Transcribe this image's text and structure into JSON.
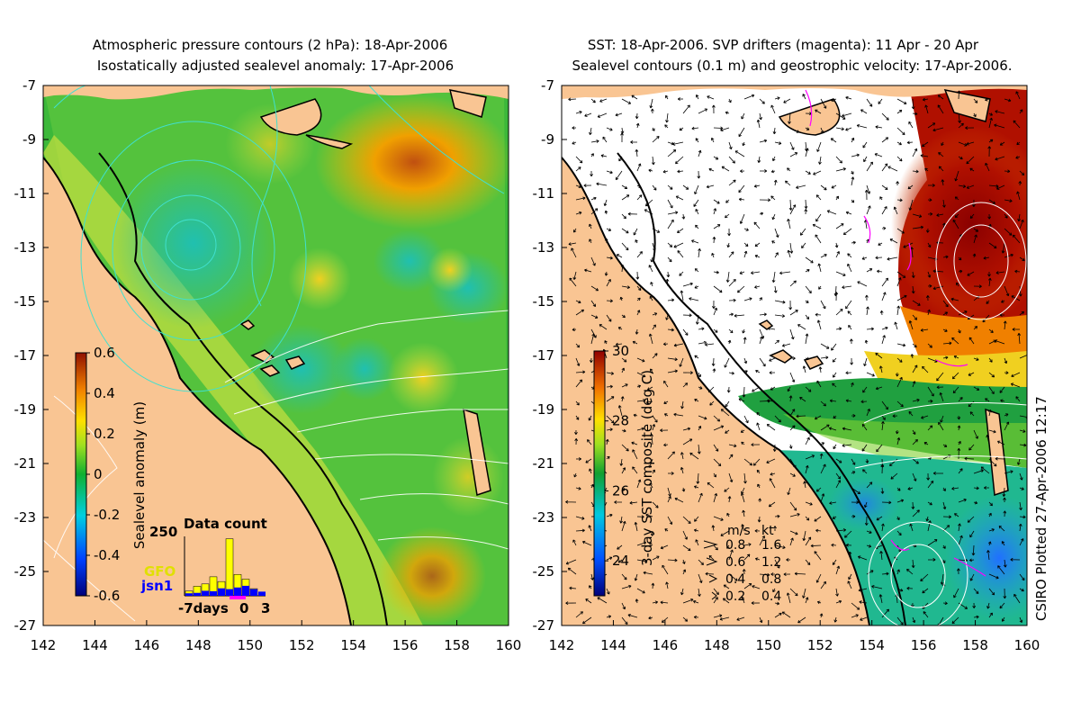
{
  "left_panel": {
    "title_line1": "Atmospheric pressure contours (2 hPa): 18-Apr-2006",
    "title_line2": "Isostatically adjusted sealevel anomaly: 17-Apr-2006",
    "x_ticks": [
      "142",
      "144",
      "146",
      "148",
      "150",
      "152",
      "154",
      "156",
      "158",
      "160"
    ],
    "y_ticks": [
      "-7",
      "-9",
      "-11",
      "-13",
      "-15",
      "-17",
      "-19",
      "-21",
      "-23",
      "-25",
      "-27"
    ],
    "colorbar": {
      "label": "Sealevel anomaly (m)",
      "ticks": [
        "0.6",
        "0.4",
        "0.2",
        "0",
        "-0.2",
        "-0.4",
        "-0.6"
      ],
      "range": [
        -0.6,
        0.6
      ]
    },
    "inset": {
      "title": "Data count",
      "ymax_label": "250",
      "series_gfo": "GFO",
      "series_jsn1": "jsn1",
      "x_label_days": "-7days",
      "x_label_zero": "0",
      "x_label_three": "3",
      "gfo_color": "#ffff00",
      "jsn1_color": "#0000ff",
      "gfo_counts": [
        20,
        40,
        50,
        80,
        60,
        240,
        90,
        70,
        30
      ],
      "jsn1_counts": [
        30,
        35,
        60,
        55,
        90,
        80,
        100,
        120,
        80,
        50
      ]
    }
  },
  "right_panel": {
    "title_line1": "SST: 18-Apr-2006. SVP drifters (magenta): 11 Apr - 20 Apr",
    "title_line2": "Sealevel contours (0.1 m) and geostrophic velocity: 17-Apr-2006.",
    "x_ticks": [
      "142",
      "144",
      "146",
      "148",
      "150",
      "152",
      "154",
      "156",
      "158",
      "160"
    ],
    "y_ticks": [
      "-7",
      "-9",
      "-11",
      "-13",
      "-15",
      "-17",
      "-19",
      "-21",
      "-23",
      "-25",
      "-27"
    ],
    "colorbar": {
      "label": "3-day SST composite (deg C)",
      "ticks": [
        "30",
        "28",
        "26",
        "24"
      ],
      "range": [
        23,
        30
      ]
    },
    "velocity_key": {
      "header_ms": "m/s",
      "header_kt": "kt",
      "rows": [
        {
          "ms": "0.8",
          "kt": "1.6"
        },
        {
          "ms": "0.6",
          "kt": "1.2"
        },
        {
          "ms": "0.4",
          "kt": "0.8"
        },
        {
          "ms": "0.2",
          "kt": "0.4"
        }
      ]
    }
  },
  "credit": "CSIRO Plotted 27-Apr-2006 12:17",
  "colors": {
    "land": "#f9c593",
    "coast": "#000000",
    "pressure_contour": "#40e0d0",
    "drifter": "#ff00ff"
  }
}
